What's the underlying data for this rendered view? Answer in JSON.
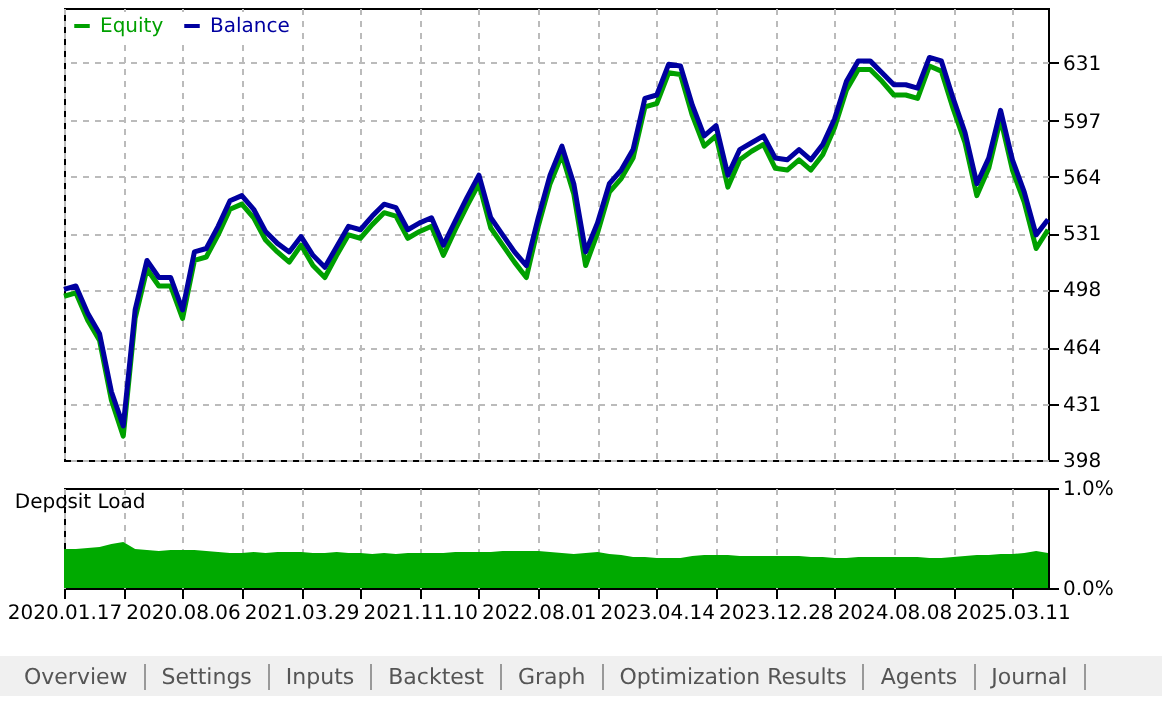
{
  "chart_data": [
    {
      "type": "line",
      "ylim": [
        398,
        663
      ],
      "categories": [
        "2020.01.17",
        null,
        null,
        null,
        null,
        null,
        null,
        null,
        null,
        null,
        "2020.08.06",
        null,
        null,
        null,
        null,
        null,
        null,
        null,
        null,
        null,
        "2021.03.29",
        null,
        null,
        null,
        null,
        null,
        null,
        null,
        null,
        null,
        "2021.11.10",
        null,
        null,
        null,
        null,
        null,
        null,
        null,
        null,
        null,
        "2022.08.01",
        null,
        null,
        null,
        null,
        null,
        null,
        null,
        null,
        null,
        "2023.04.14",
        null,
        null,
        null,
        null,
        null,
        null,
        null,
        null,
        null,
        "2023.12.28",
        null,
        null,
        null,
        null,
        null,
        null,
        null,
        null,
        null,
        "2024.08.08",
        null,
        null,
        null,
        null,
        null,
        null,
        null,
        null,
        null,
        "2025.03.11",
        null,
        null,
        null
      ],
      "yticks": [
        398,
        431,
        464,
        498,
        531,
        564,
        597,
        631
      ],
      "grid": true,
      "legend": "top left",
      "tick_labels": "y",
      "line_style": "solid",
      "series": [
        {
          "name": "Equity",
          "color": "#00a000",
          "values": [
            494,
            496,
            480,
            468,
            433,
            412,
            481,
            510,
            500,
            500,
            481,
            515,
            517,
            530,
            545,
            548,
            540,
            527,
            520,
            514,
            524,
            512,
            505,
            518,
            530,
            528,
            536,
            543,
            541,
            528,
            532,
            535,
            518,
            533,
            547,
            560,
            534,
            524,
            514,
            505,
            535,
            560,
            577,
            554,
            512,
            531,
            555,
            563,
            575,
            605,
            607,
            625,
            624,
            600,
            582,
            588,
            558,
            574,
            579,
            583,
            569,
            568,
            574,
            568,
            577,
            593,
            615,
            627,
            627,
            620,
            612,
            612,
            610,
            629,
            626,
            604,
            584,
            553,
            569,
            598,
            568,
            549,
            522,
            533
          ]
        },
        {
          "name": "Balance",
          "color": "#0000a0",
          "values": [
            498,
            500,
            484,
            472,
            438,
            418,
            486,
            515,
            505,
            505,
            486,
            520,
            522,
            535,
            550,
            553,
            545,
            532,
            525,
            520,
            529,
            518,
            511,
            523,
            535,
            533,
            541,
            548,
            546,
            533,
            537,
            540,
            524,
            538,
            552,
            565,
            540,
            530,
            520,
            512,
            540,
            565,
            582,
            560,
            520,
            537,
            560,
            568,
            580,
            610,
            612,
            630,
            629,
            606,
            588,
            594,
            565,
            580,
            584,
            588,
            575,
            574,
            580,
            574,
            583,
            598,
            620,
            632,
            632,
            625,
            618,
            618,
            616,
            634,
            632,
            610,
            590,
            560,
            575,
            603,
            574,
            555,
            530,
            539
          ]
        }
      ]
    },
    {
      "type": "area",
      "title": "Deposit Load",
      "ylim": [
        0,
        1
      ],
      "categories": [
        "2020.01.17",
        null,
        null,
        null,
        null,
        null,
        null,
        null,
        null,
        null,
        "2020.08.06",
        null,
        null,
        null,
        null,
        null,
        null,
        null,
        null,
        null,
        "2021.03.29",
        null,
        null,
        null,
        null,
        null,
        null,
        null,
        null,
        null,
        "2021.11.10",
        null,
        null,
        null,
        null,
        null,
        null,
        null,
        null,
        null,
        "2022.08.01",
        null,
        null,
        null,
        null,
        null,
        null,
        null,
        null,
        null,
        "2023.04.14",
        null,
        null,
        null,
        null,
        null,
        null,
        null,
        null,
        null,
        "2023.12.28",
        null,
        null,
        null,
        null,
        null,
        null,
        null,
        null,
        null,
        "2024.08.08",
        null,
        null,
        null,
        null,
        null,
        null,
        null,
        null,
        null,
        "2025.03.11",
        null,
        null,
        null
      ],
      "yticks": [
        {
          "value": 1,
          "label": "1.0%"
        },
        {
          "value": 0,
          "label": "0.0%"
        }
      ],
      "grid": "x",
      "series": [
        {
          "color": "#00aa00",
          "values": [
            0.39,
            0.39,
            0.4,
            0.41,
            0.44,
            0.46,
            0.39,
            0.38,
            0.37,
            0.38,
            0.38,
            0.38,
            0.37,
            0.36,
            0.35,
            0.35,
            0.36,
            0.35,
            0.36,
            0.36,
            0.36,
            0.35,
            0.35,
            0.36,
            0.35,
            0.35,
            0.34,
            0.35,
            0.34,
            0.35,
            0.35,
            0.35,
            0.35,
            0.36,
            0.36,
            0.36,
            0.36,
            0.37,
            0.37,
            0.37,
            0.37,
            0.36,
            0.35,
            0.34,
            0.35,
            0.36,
            0.34,
            0.33,
            0.31,
            0.31,
            0.3,
            0.3,
            0.3,
            0.32,
            0.33,
            0.33,
            0.33,
            0.32,
            0.32,
            0.32,
            0.32,
            0.32,
            0.32,
            0.31,
            0.31,
            0.3,
            0.3,
            0.31,
            0.31,
            0.31,
            0.31,
            0.31,
            0.31,
            0.3,
            0.3,
            0.31,
            0.32,
            0.33,
            0.33,
            0.34,
            0.34,
            0.35,
            0.37,
            0.35
          ]
        }
      ],
      "annotations": [
        "Overview",
        "Settings",
        "Inputs",
        "Backtest",
        "Graph",
        "Optimization Results",
        "Agents",
        "Journal"
      ]
    }
  ]
}
